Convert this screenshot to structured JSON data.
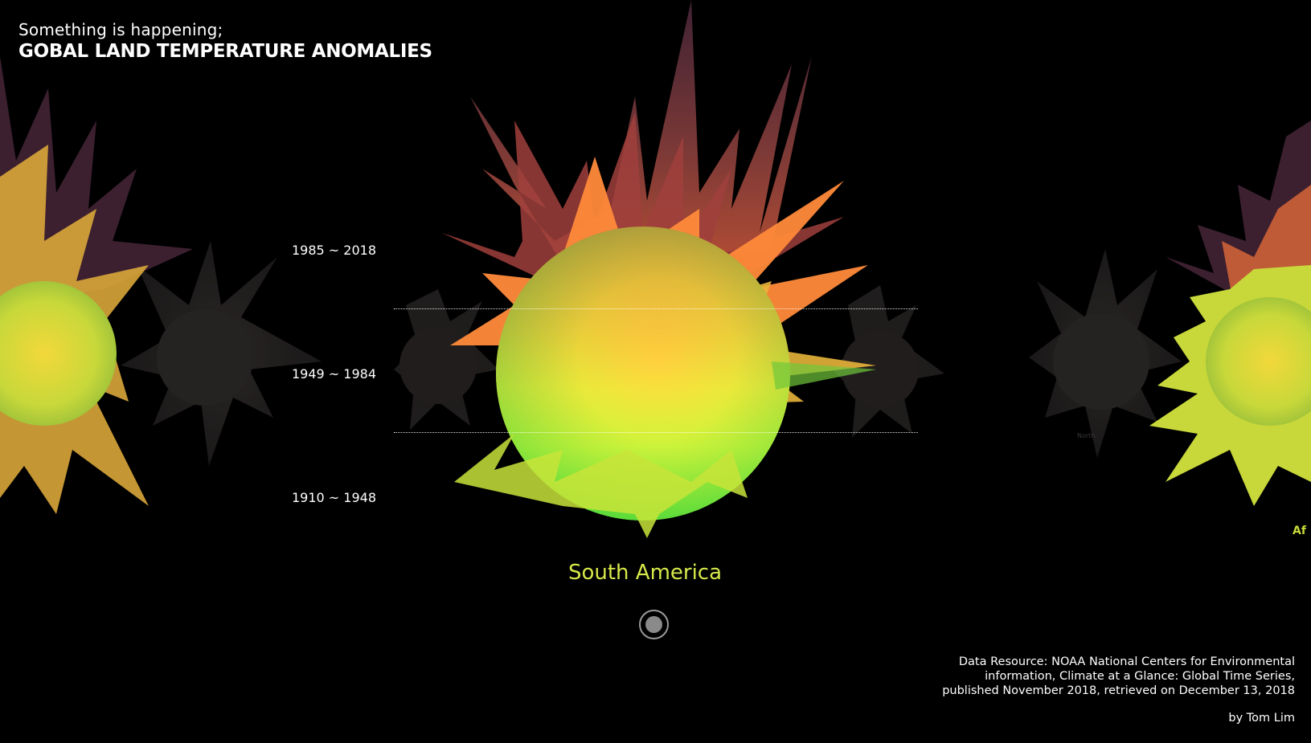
{
  "header": {
    "subtitle": "Something is happening;",
    "title": "GOBAL LAND TEMPERATURE ANOMALIES"
  },
  "eras": [
    {
      "label": "1985 ~ 2018"
    },
    {
      "label": "1949 ~ 1984"
    },
    {
      "label": "1910 ~ 1948"
    }
  ],
  "region": {
    "name": "South America",
    "color": "#d6e84a"
  },
  "controls": {
    "play_icon": "record-circle-icon"
  },
  "credits": {
    "line1": "Data Resource: NOAA National Centers for Environmental",
    "line2": "information, Climate at a Glance: Global Time Series,",
    "line3": "published November 2018, retrieved on December 13, 2018",
    "author": "by Tom Lim"
  },
  "colors": {
    "background": "#000000",
    "hot": "#e0503a",
    "warm": "#ffd23c",
    "cool": "#b8f23a",
    "base": "#5be83a"
  }
}
